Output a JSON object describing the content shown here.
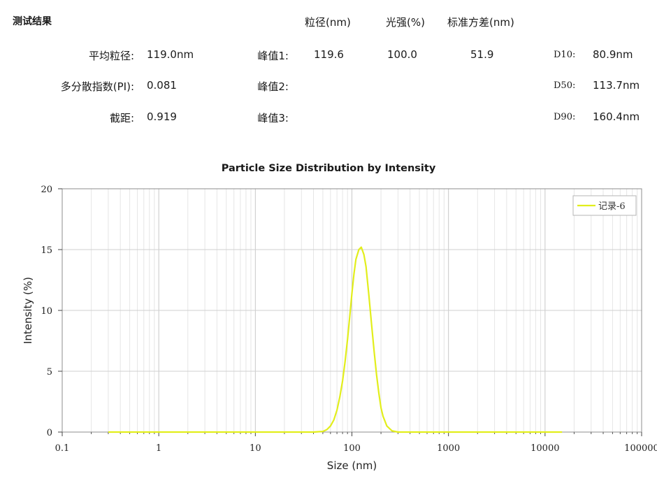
{
  "results": {
    "section_title": "测试结果",
    "headers": {
      "size": "粒径(nm)",
      "intensity": "光强(%)",
      "std_dev": "标准方差(nm)"
    },
    "left": {
      "z_average_label": "平均粒径:",
      "z_average_value": "119.0nm",
      "pdi_label": "多分散指数(PI):",
      "pdi_value": "0.081",
      "intercept_label": "截距:",
      "intercept_value": "0.919"
    },
    "peaks": [
      {
        "label": "峰值1:",
        "size": "119.6",
        "intensity": "100.0",
        "std_dev": "51.9"
      },
      {
        "label": "峰值2:",
        "size": "",
        "intensity": "",
        "std_dev": ""
      },
      {
        "label": "峰值3:",
        "size": "",
        "intensity": "",
        "std_dev": ""
      }
    ],
    "d_values": [
      {
        "label": "D10:",
        "value": "80.9nm"
      },
      {
        "label": "D50:",
        "value": "113.7nm"
      },
      {
        "label": "D90:",
        "value": "160.4nm"
      }
    ]
  },
  "chart_data": {
    "type": "line",
    "title": "Particle Size Distribution by Intensity",
    "xlabel": "Size (nm)",
    "ylabel": "Intensity (%)",
    "x_scale": "log",
    "xlim": [
      0.1,
      100000
    ],
    "ylim": [
      0,
      20
    ],
    "x_ticks": [
      "0.1",
      "1",
      "10",
      "100",
      "1000",
      "10000",
      "100000"
    ],
    "y_ticks": [
      "0",
      "5",
      "10",
      "15",
      "20"
    ],
    "grid": true,
    "legend_position": "top-right",
    "series": [
      {
        "name": "记录-6",
        "color": "#e2ee1c",
        "x": [
          0.3,
          1,
          10,
          40,
          50,
          55,
          60,
          65,
          70,
          75,
          80,
          85,
          90,
          95,
          100,
          105,
          110,
          118,
          125,
          133,
          140,
          150,
          160,
          170,
          180,
          190,
          200,
          210,
          230,
          260,
          300,
          400,
          1000,
          10000,
          15000
        ],
        "y": [
          0,
          0,
          0,
          0,
          0.05,
          0.2,
          0.5,
          1.0,
          1.8,
          2.9,
          4.2,
          5.8,
          7.6,
          9.5,
          11.4,
          13.0,
          14.2,
          15.0,
          15.2,
          14.6,
          13.6,
          11.2,
          8.8,
          6.6,
          4.7,
          3.2,
          2.0,
          1.3,
          0.5,
          0.1,
          0,
          0,
          0,
          0,
          0
        ]
      }
    ]
  }
}
